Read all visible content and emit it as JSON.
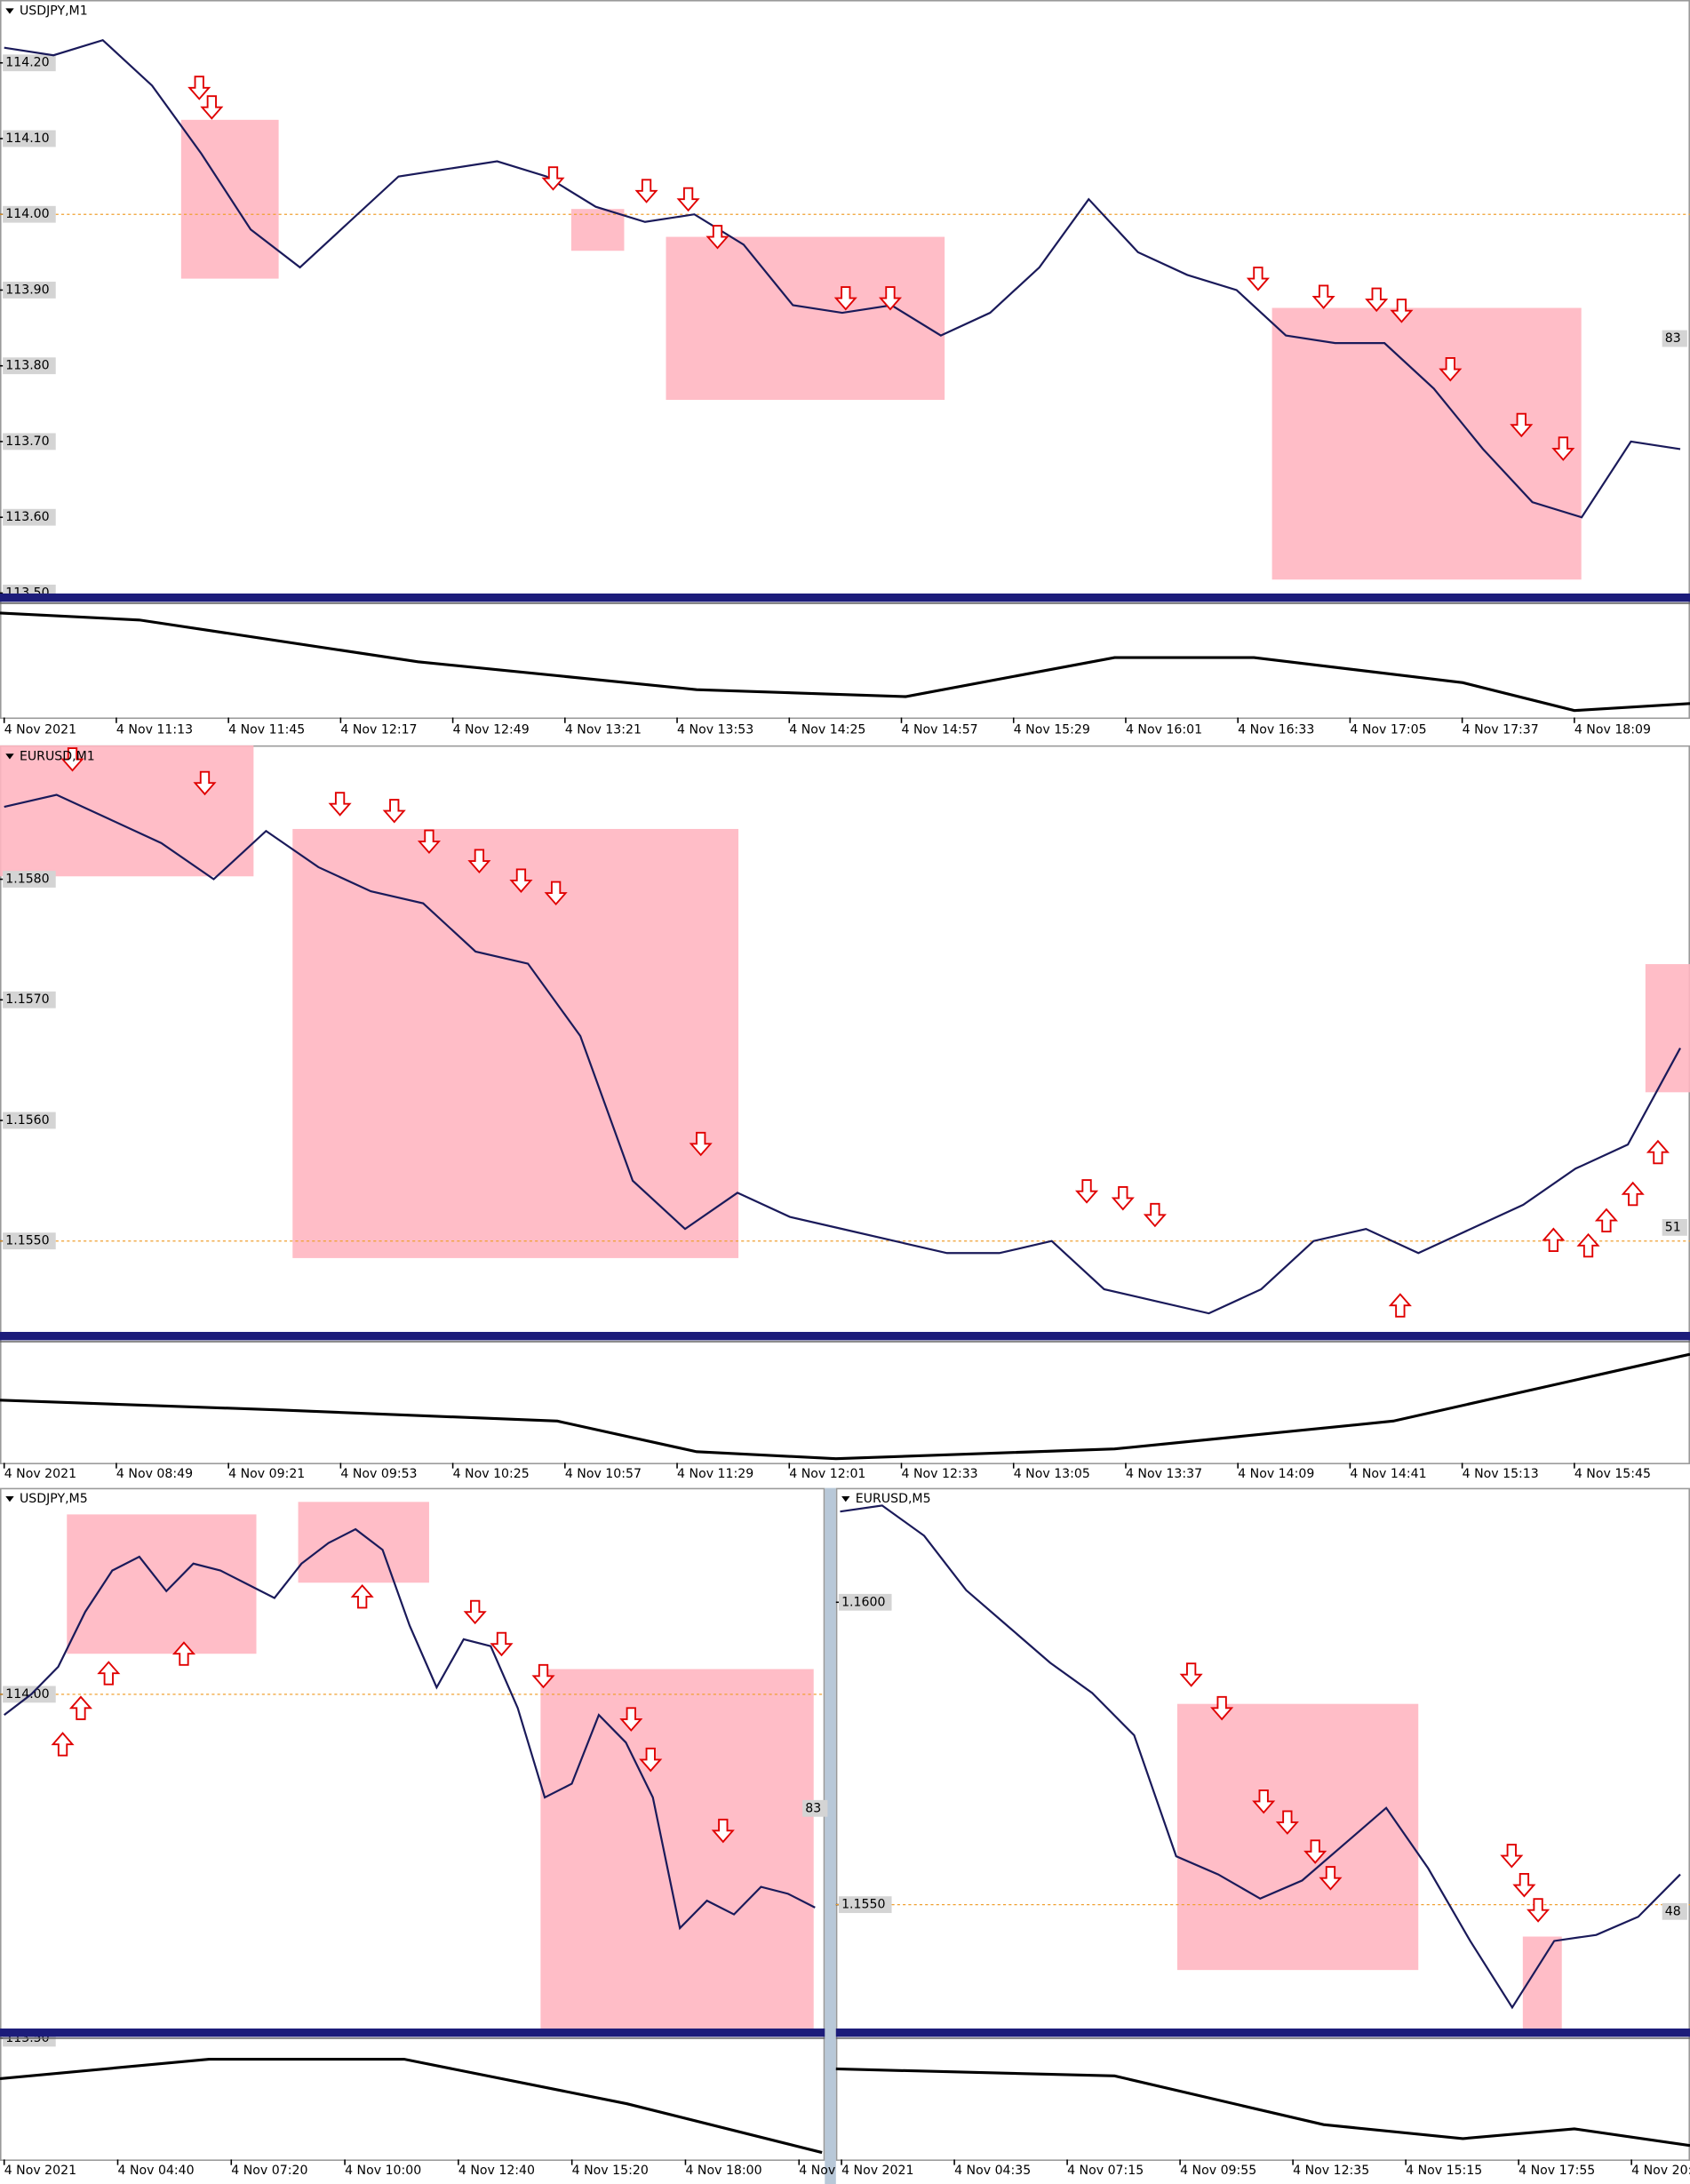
{
  "panels": [
    {
      "title": "USDJPY,M1",
      "ylim": [
        113.492,
        114.283
      ],
      "yticks": [
        {
          "value": 114.2,
          "label": "114.20"
        },
        {
          "value": 114.1,
          "label": "114.10"
        },
        {
          "value": 114.0,
          "label": "114.00"
        },
        {
          "value": 113.9,
          "label": "113.90"
        },
        {
          "value": 113.8,
          "label": "113.80"
        },
        {
          "value": 113.7,
          "label": "113.70"
        },
        {
          "value": 113.6,
          "label": "113.60"
        },
        {
          "value": 113.5,
          "label": "113.50"
        }
      ],
      "close": [
        114.22,
        114.21,
        114.23,
        114.17,
        114.08,
        113.98,
        113.93,
        113.99,
        114.05,
        114.06,
        114.07,
        114.05,
        114.01,
        113.99,
        114.0,
        113.96,
        113.88,
        113.87,
        113.88,
        113.84,
        113.87,
        113.93,
        114.02,
        113.95,
        113.92,
        113.9,
        113.84,
        113.83,
        113.83,
        113.77,
        113.69,
        113.62,
        113.6,
        113.7,
        113.69
      ],
      "side_label": "83",
      "time_labels": [
        "4 Nov 2021",
        "4 Nov 11:13",
        "4 Nov 11:45",
        "4 Nov 12:17",
        "4 Nov 12:49",
        "4 Nov 13:21",
        "4 Nov 13:53",
        "4 Nov 14:25",
        "4 Nov 14:57",
        "4 Nov 15:29",
        "4 Nov 16:01",
        "4 Nov 16:33",
        "4 Nov 17:05",
        "4 Nov 17:37",
        "4 Nov 18:09"
      ]
    },
    {
      "title": "EURUSD,M1",
      "ylim": [
        1.1542,
        1.15911
      ],
      "yticks": [
        {
          "value": 1.158,
          "label": "1.1580"
        },
        {
          "value": 1.157,
          "label": "1.1570"
        },
        {
          "value": 1.156,
          "label": "1.1560"
        },
        {
          "value": 1.155,
          "label": "1.1550"
        }
      ],
      "close": [
        1.1586,
        1.1587,
        1.1585,
        1.1583,
        1.158,
        1.1584,
        1.1581,
        1.1579,
        1.1578,
        1.1574,
        1.1573,
        1.1567,
        1.1555,
        1.1551,
        1.1554,
        1.1552,
        1.1551,
        1.155,
        1.1549,
        1.1549,
        1.155,
        1.1546,
        1.1545,
        1.1544,
        1.1546,
        1.155,
        1.1551,
        1.1549,
        1.1551,
        1.1553,
        1.1556,
        1.1558,
        1.1566
      ],
      "side_label": "51",
      "time_labels": [
        "4 Nov 2021",
        "4 Nov 08:49",
        "4 Nov 09:21",
        "4 Nov 09:53",
        "4 Nov 10:25",
        "4 Nov 10:57",
        "4 Nov 11:29",
        "4 Nov 12:01",
        "4 Nov 12:33",
        "4 Nov 13:05",
        "4 Nov 13:37",
        "4 Nov 14:09",
        "4 Nov 14:41",
        "4 Nov 15:13",
        "4 Nov 15:45"
      ]
    },
    {
      "title": "USDJPY,M5",
      "ylim": [
        113.506,
        114.3
      ],
      "yticks": [
        {
          "value": 114.0,
          "label": "114.00"
        },
        {
          "value": 113.5,
          "label": "113.50"
        }
      ],
      "close": [
        113.97,
        114.0,
        114.04,
        114.12,
        114.18,
        114.2,
        114.15,
        114.19,
        114.18,
        114.16,
        114.14,
        114.19,
        114.22,
        114.24,
        114.21,
        114.1,
        114.01,
        114.08,
        114.07,
        113.98,
        113.85,
        113.87,
        113.97,
        113.93,
        113.85,
        113.66,
        113.7,
        113.68,
        113.72,
        113.71,
        113.69
      ],
      "side_label": "83",
      "time_labels": [
        "4 Nov 2021",
        "4 Nov 04:40",
        "4 Nov 07:20",
        "4 Nov 10:00",
        "4 Nov 12:40",
        "4 Nov 15:20",
        "4 Nov 18:00",
        "4 Nov"
      ]
    },
    {
      "title": "EURUSD,M5",
      "ylim": [
        1.15286,
        1.16189
      ],
      "yticks": [
        {
          "value": 1.16,
          "label": "1.1600"
        },
        {
          "value": 1.155,
          "label": "1.1550"
        }
      ],
      "close": [
        1.1615,
        1.1616,
        1.1611,
        1.1602,
        1.1596,
        1.159,
        1.1585,
        1.1578,
        1.1558,
        1.1555,
        1.1551,
        1.1554,
        1.156,
        1.1566,
        1.1556,
        1.1544,
        1.1533,
        1.1544,
        1.1545,
        1.1548,
        1.1555
      ],
      "side_label": "48",
      "time_labels": [
        "4 Nov 2021",
        "4 Nov 04:35",
        "4 Nov 07:15",
        "4 Nov 09:55",
        "4 Nov 12:35",
        "4 Nov 15:15",
        "4 Nov 17:55",
        "4 Nov 20:"
      ]
    }
  ]
}
